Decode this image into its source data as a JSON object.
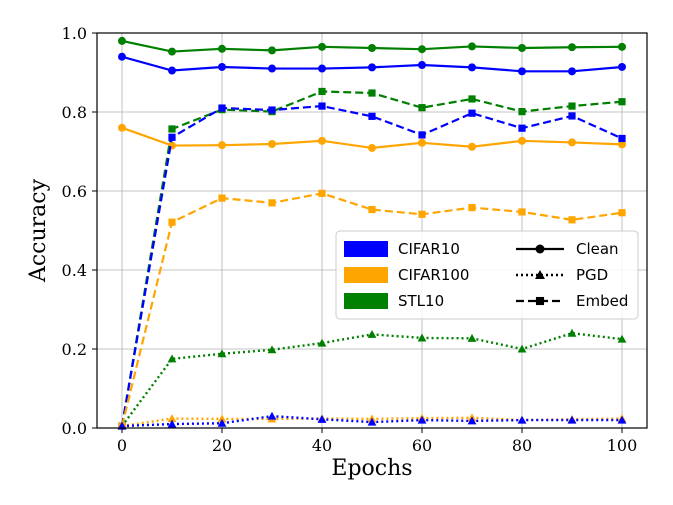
{
  "chart_data": {
    "type": "line",
    "title": "",
    "xlabel": "Epochs",
    "ylabel": "Accuracy",
    "xlim": [
      -5,
      105
    ],
    "ylim": [
      0.0,
      1.0
    ],
    "xticks": [
      0,
      20,
      40,
      60,
      80,
      100
    ],
    "xtick_labels": [
      "0",
      "20",
      "40",
      "60",
      "80",
      "100"
    ],
    "yticks": [
      0.0,
      0.2,
      0.4,
      0.6,
      0.8,
      1.0
    ],
    "ytick_labels": [
      "0.0",
      "0.2",
      "0.4",
      "0.6",
      "0.8",
      "1.0"
    ],
    "grid": true,
    "legend_position": "center-right",
    "x": [
      0,
      10,
      20,
      30,
      40,
      50,
      60,
      70,
      80,
      90,
      100
    ],
    "datasets": [
      {
        "name": "CIFAR10",
        "color": "#0000ff"
      },
      {
        "name": "CIFAR100",
        "color": "#ffa500"
      },
      {
        "name": "STL10",
        "color": "#008000"
      }
    ],
    "methods": [
      {
        "name": "Clean",
        "linestyle": "solid",
        "marker": "circle"
      },
      {
        "name": "PGD",
        "linestyle": "dotted",
        "marker": "triangle"
      },
      {
        "name": "Embed",
        "linestyle": "dashed",
        "marker": "square"
      }
    ],
    "series": [
      {
        "name": "STL10 Clean",
        "dataset": "STL10",
        "method": "Clean",
        "values": [
          0.98,
          0.953,
          0.96,
          0.956,
          0.965,
          0.962,
          0.959,
          0.966,
          0.962,
          0.964,
          0.965
        ]
      },
      {
        "name": "CIFAR10 Clean",
        "dataset": "CIFAR10",
        "method": "Clean",
        "values": [
          0.94,
          0.905,
          0.914,
          0.91,
          0.91,
          0.913,
          0.919,
          0.913,
          0.903,
          0.903,
          0.914
        ]
      },
      {
        "name": "CIFAR100 Clean",
        "dataset": "CIFAR100",
        "method": "Clean",
        "values": [
          0.76,
          0.715,
          0.716,
          0.719,
          0.727,
          0.709,
          0.722,
          0.712,
          0.727,
          0.723,
          0.718
        ]
      },
      {
        "name": "STL10 Embed",
        "dataset": "STL10",
        "method": "Embed",
        "values": [
          0.005,
          0.757,
          0.806,
          0.801,
          0.852,
          0.848,
          0.811,
          0.833,
          0.801,
          0.815,
          0.826
        ]
      },
      {
        "name": "CIFAR10 Embed",
        "dataset": "CIFAR10",
        "method": "Embed",
        "values": [
          0.005,
          0.736,
          0.81,
          0.805,
          0.815,
          0.789,
          0.742,
          0.797,
          0.759,
          0.79,
          0.733
        ]
      },
      {
        "name": "CIFAR100 Embed",
        "dataset": "CIFAR100",
        "method": "Embed",
        "values": [
          0.005,
          0.521,
          0.582,
          0.57,
          0.594,
          0.553,
          0.541,
          0.558,
          0.547,
          0.527,
          0.545
        ]
      },
      {
        "name": "STL10 PGD",
        "dataset": "STL10",
        "method": "PGD",
        "values": [
          0.005,
          0.175,
          0.188,
          0.198,
          0.215,
          0.237,
          0.228,
          0.227,
          0.2,
          0.24,
          0.225
        ]
      },
      {
        "name": "CIFAR100 PGD",
        "dataset": "CIFAR100",
        "method": "PGD",
        "values": [
          0.005,
          0.024,
          0.023,
          0.023,
          0.024,
          0.023,
          0.025,
          0.026,
          0.02,
          0.022,
          0.024
        ]
      },
      {
        "name": "CIFAR10 PGD",
        "dataset": "CIFAR10",
        "method": "PGD",
        "values": [
          0.005,
          0.01,
          0.012,
          0.03,
          0.022,
          0.015,
          0.02,
          0.018,
          0.02,
          0.02,
          0.02
        ]
      }
    ]
  }
}
